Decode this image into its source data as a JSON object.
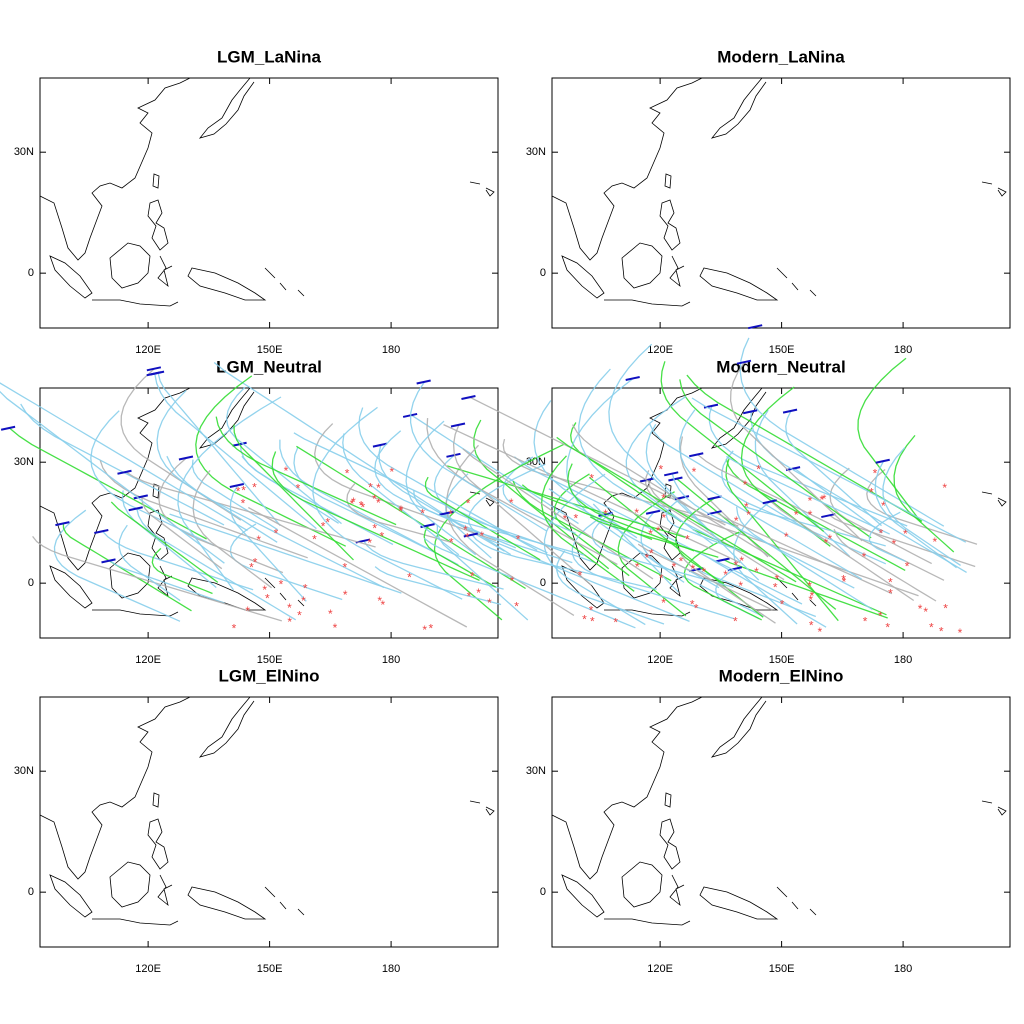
{
  "panels": [
    {
      "title": "LGM_LaNina"
    },
    {
      "title": "Modern_LaNina"
    },
    {
      "title": "LGM_Neutral"
    },
    {
      "title": "Modern_Neutral"
    },
    {
      "title": "LGM_ElNino"
    },
    {
      "title": "Modern_ElNino"
    }
  ],
  "lon_range": [
    93.3,
    206.4
  ],
  "lat_range": [
    -13.6,
    48.4
  ],
  "lon_ticks": [
    {
      "value": 120,
      "label": "120E"
    },
    {
      "value": 150,
      "label": "150E"
    },
    {
      "value": 180,
      "label": "180"
    }
  ],
  "lat_ticks": [
    0,
    {
      "value": 30,
      "label": "30N"
    }
  ]
}
